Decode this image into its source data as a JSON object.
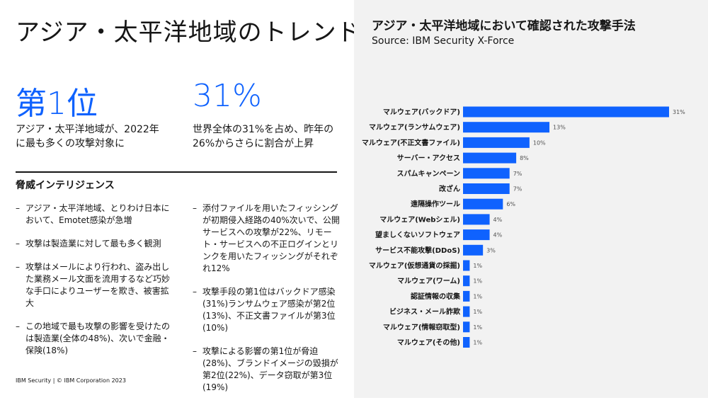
{
  "left": {
    "title": "アジア・太平洋地域のトレンド",
    "stats": [
      {
        "big": "第1位",
        "text": "アジア・太平洋地域が、2022年に最も多くの攻撃対象に"
      },
      {
        "big": "31%",
        "text": "世界全体の31%を占め、昨年の26%からさらに割合が上昇"
      }
    ],
    "section_heading": "脅威インテリジェンス",
    "bullets_col1": [
      "アジア・太平洋地域、とりわけ日本において、Emotet感染が急増",
      "攻撃は製造業に対して最も多く観測",
      "攻撃はメールにより行われ、盗み出した業務メール文面を流用するなど巧妙な手口によりユーザーを欺き、被害拡大",
      "この地域で最も攻撃の影響を受けたのは製造業(全体の48%)、次いで金融・保険(18%)"
    ],
    "bullets_col2": [
      "添付ファイルを用いたフィッシングが初期侵入経路の40%次いで、公開サービスへの攻撃が22%、リモート・サービスへの不正ログインとリンクを用いたフィッシングがそれぞれ12%",
      "攻撃手段の第1位はバックドア感染(31%)ランサムウェア感染が第2位(13%)、不正文書ファイルが第3位(10%)",
      "攻撃による影響の第1位が脅迫(28%)、ブランドイメージの毀損が第2位(22%)、データ窃取が第3位(19%)"
    ],
    "footer": "IBM Security | © IBM Corporation 2023"
  },
  "chart_data": {
    "type": "bar",
    "orientation": "horizontal",
    "title": "アジア・太平洋地域において確認された攻撃手法",
    "subtitle": "Source: IBM Security X-Force",
    "categories": [
      "マルウェア(バックドア)",
      "マルウェア(ランサムウェア)",
      "マルウェア(不正文書ファイル)",
      "サーバー・アクセス",
      "スパムキャンペーン",
      "改ざん",
      "遠隔操作ツール",
      "マルウェア(Webシェル)",
      "望ましくないソフトウェア",
      "サービス不能攻撃(DDoS)",
      "マルウェア(仮想通貨の採掘)",
      "マルウェア(ワーム)",
      "認証情報の収集",
      "ビジネス・メール詐欺",
      "マルウェア(情報窃取型)",
      "マルウェア(その他)"
    ],
    "values": [
      31,
      13,
      10,
      8,
      7,
      7,
      6,
      4,
      4,
      3,
      1,
      1,
      1,
      1,
      1,
      1
    ],
    "value_labels": [
      "31%",
      "13%",
      "10%",
      "8%",
      "7%",
      "7%",
      "6%",
      "4%",
      "4%",
      "3%",
      "1%",
      "1%",
      "1%",
      "1%",
      "1%",
      "1%"
    ],
    "xlim": [
      0,
      31
    ],
    "bar_color": "#0f62fe",
    "xlabel": "",
    "ylabel": ""
  }
}
